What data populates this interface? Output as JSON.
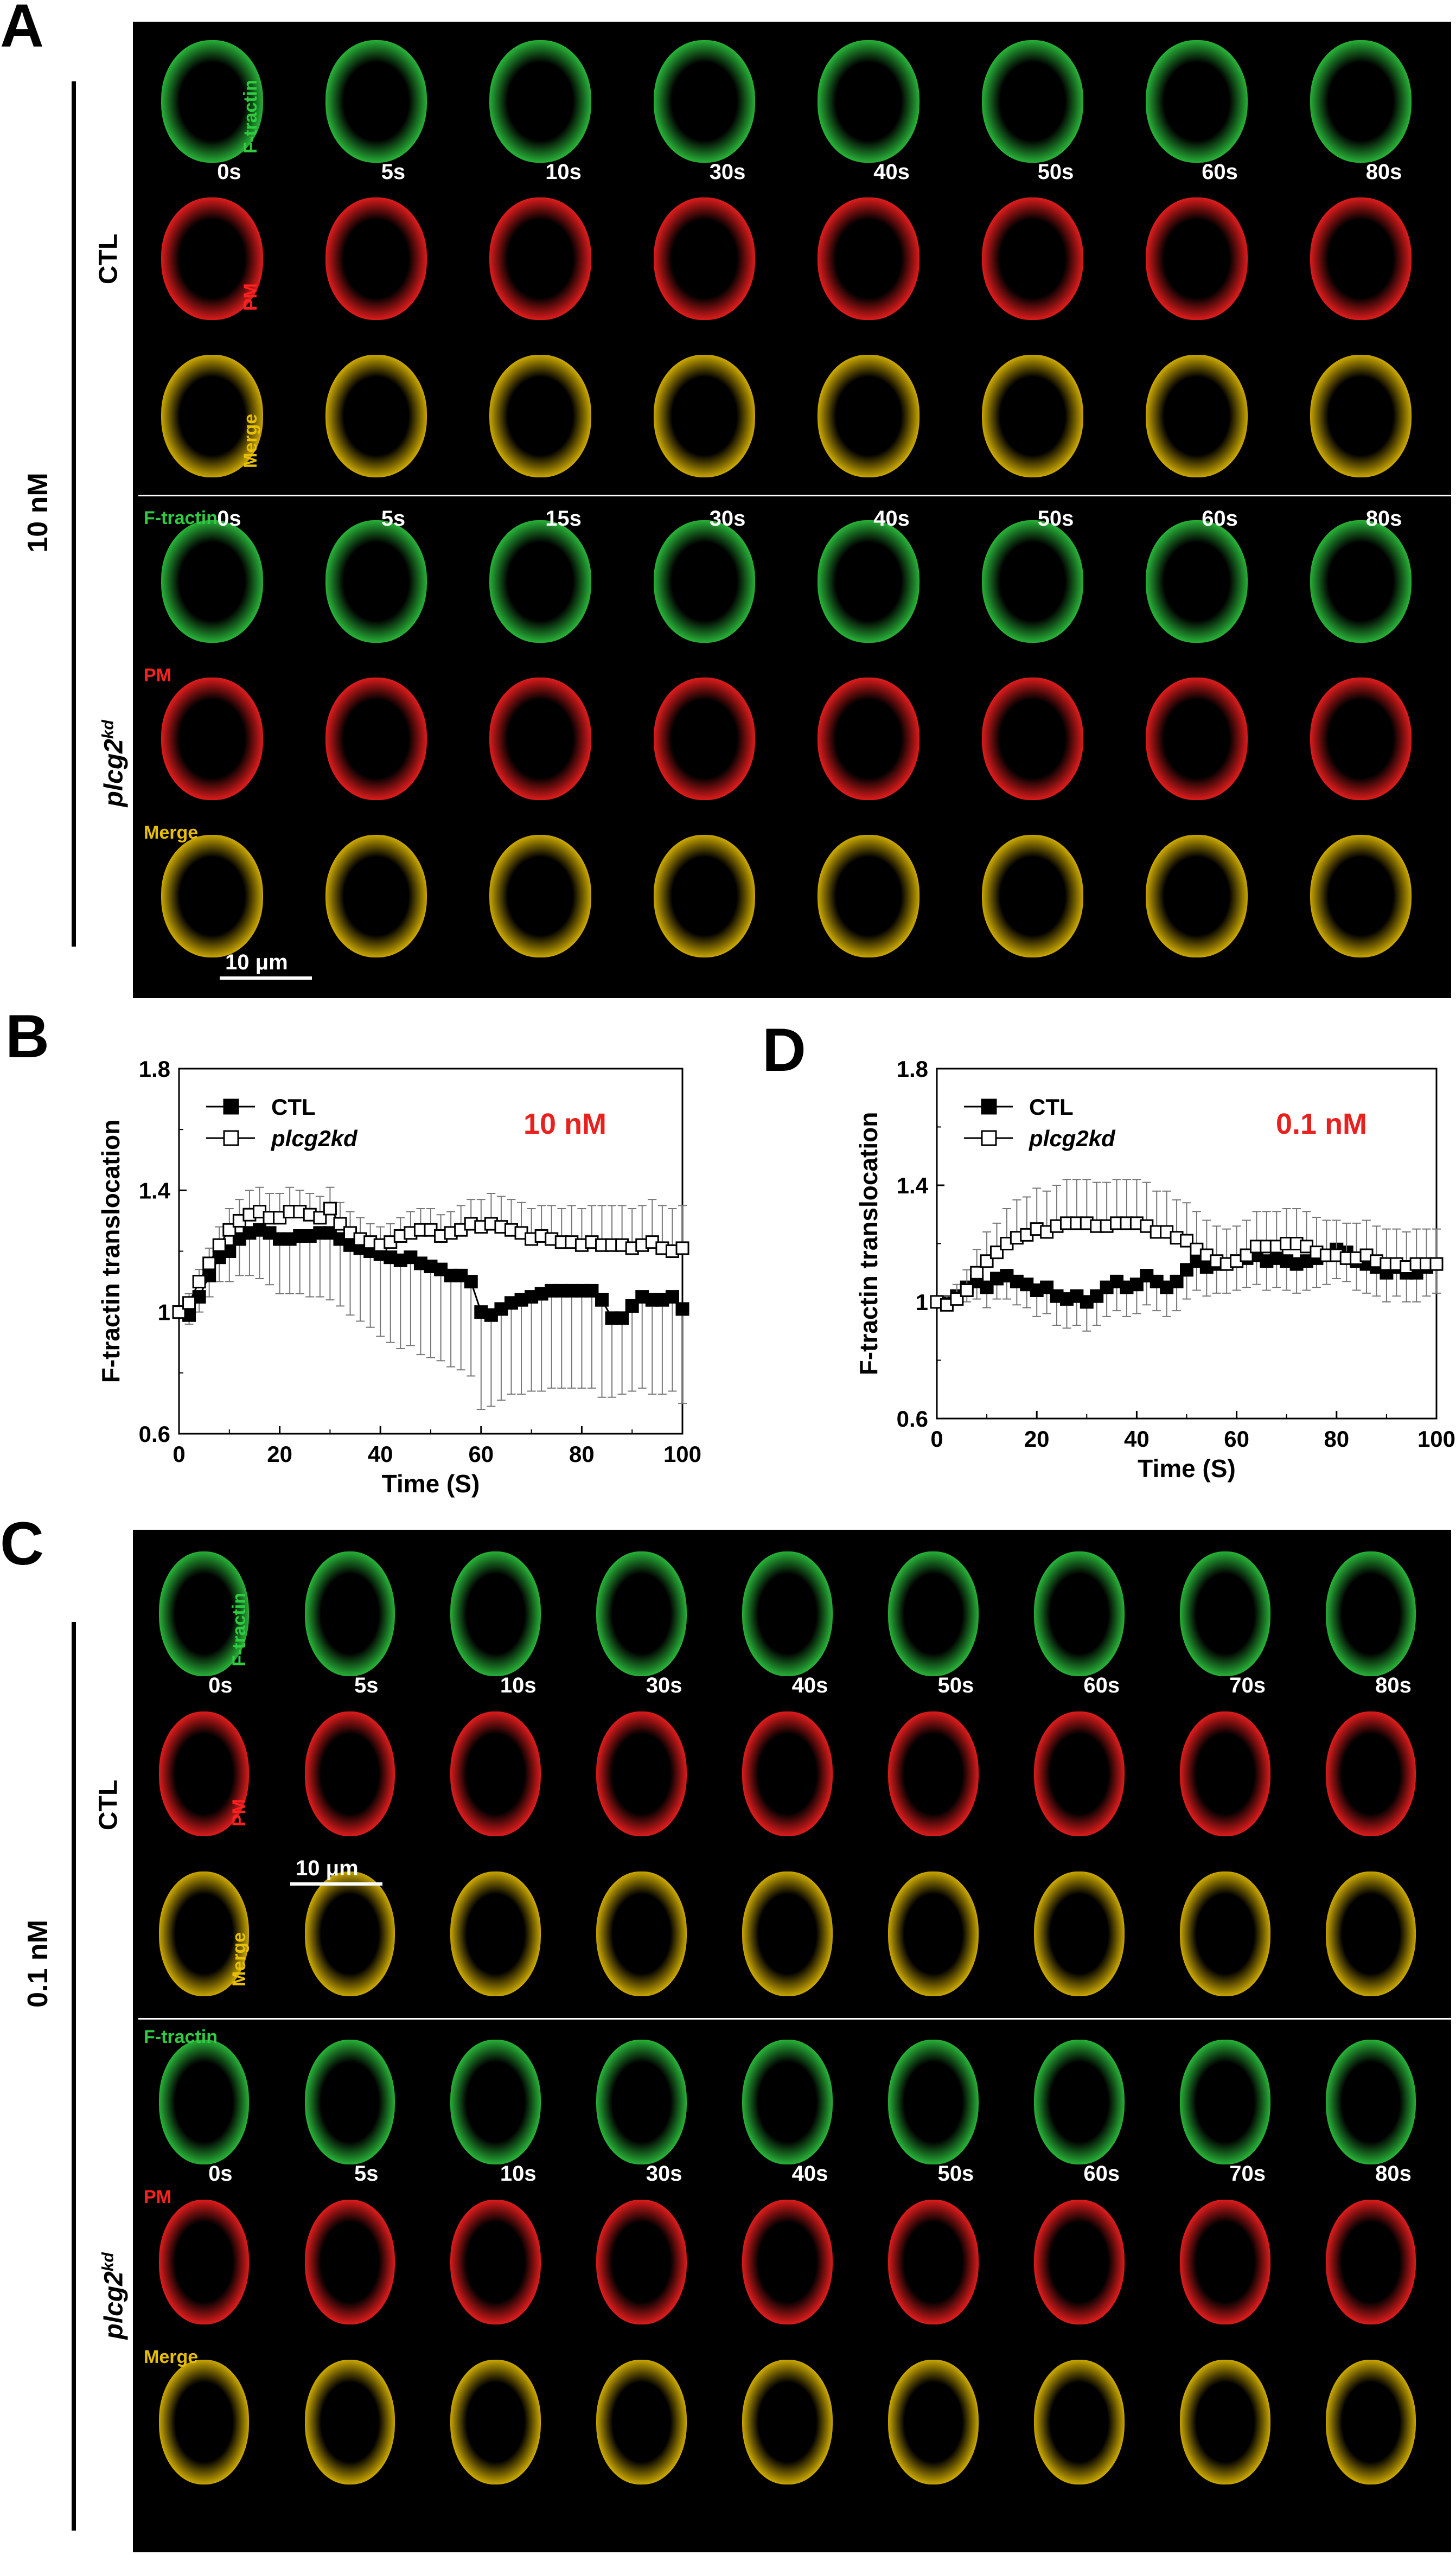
{
  "panels": {
    "A": {
      "letter": "A",
      "concentration": "10 nM",
      "ctl": {
        "group_label": "CTL",
        "rows": [
          "F-tractin",
          "PM",
          "Merge"
        ],
        "times": [
          "0s",
          "5s",
          "10s",
          "30s",
          "40s",
          "50s",
          "60s",
          "80s"
        ]
      },
      "kd": {
        "group_label": "plcg2",
        "group_label_sup": "kd",
        "rows": [
          "F-tractin",
          "PM",
          "Merge"
        ],
        "times": [
          "0s",
          "5s",
          "15s",
          "30s",
          "40s",
          "50s",
          "60s",
          "80s"
        ]
      },
      "scale_bar": "10 μm"
    },
    "B": {
      "letter": "B"
    },
    "C": {
      "letter": "C",
      "concentration": "0.1 nM",
      "ctl": {
        "group_label": "CTL",
        "rows": [
          "F-tractin",
          "PM",
          "Merge"
        ],
        "times": [
          "0s",
          "5s",
          "10s",
          "30s",
          "40s",
          "50s",
          "60s",
          "70s",
          "80s"
        ]
      },
      "kd": {
        "group_label": "plcg2",
        "group_label_sup": "kd",
        "rows": [
          "F-tractin",
          "PM",
          "Merge"
        ],
        "times": [
          "0s",
          "5s",
          "10s",
          "30s",
          "40s",
          "50s",
          "60s",
          "70s",
          "80s"
        ]
      },
      "scale_bar": "10 μm"
    },
    "D": {
      "letter": "D"
    }
  },
  "colors": {
    "green": "#2ecc40",
    "red": "#ff2020",
    "merge": "#e8c000",
    "annot_red": "#e8201e"
  },
  "chart_data": [
    {
      "type": "line",
      "panel": "B",
      "annotation": "10 nM",
      "ylabel": "F-tractin translocation",
      "xlabel": "Time (S)",
      "xlim": [
        0,
        100
      ],
      "ylim": [
        0.6,
        1.8
      ],
      "xticks": [
        "0",
        "20",
        "40",
        "60",
        "80",
        "100"
      ],
      "yticks": [
        "0.6",
        "1",
        "1.4",
        "1.8"
      ],
      "series": [
        {
          "name": "CTL",
          "marker": "filled-square",
          "x": [
            0,
            2,
            4,
            6,
            8,
            10,
            12,
            14,
            16,
            18,
            20,
            22,
            24,
            26,
            28,
            30,
            32,
            34,
            36,
            38,
            40,
            42,
            44,
            46,
            48,
            50,
            52,
            54,
            56,
            58,
            60,
            62,
            64,
            66,
            68,
            70,
            72,
            74,
            76,
            78,
            80,
            82,
            84,
            86,
            88,
            90,
            92,
            94,
            96,
            98,
            100
          ],
          "y": [
            1.0,
            0.99,
            1.05,
            1.12,
            1.18,
            1.2,
            1.24,
            1.26,
            1.27,
            1.26,
            1.24,
            1.24,
            1.25,
            1.25,
            1.26,
            1.26,
            1.24,
            1.22,
            1.21,
            1.2,
            1.19,
            1.18,
            1.17,
            1.18,
            1.16,
            1.15,
            1.14,
            1.12,
            1.12,
            1.1,
            1.0,
            0.99,
            1.01,
            1.03,
            1.04,
            1.05,
            1.06,
            1.07,
            1.07,
            1.07,
            1.07,
            1.07,
            1.04,
            0.98,
            0.98,
            1.02,
            1.05,
            1.04,
            1.04,
            1.05,
            1.01
          ],
          "err": [
            0.02,
            0.03,
            0.05,
            0.07,
            0.08,
            0.1,
            0.12,
            0.14,
            0.16,
            0.17,
            0.18,
            0.18,
            0.19,
            0.2,
            0.21,
            0.22,
            0.22,
            0.23,
            0.24,
            0.25,
            0.27,
            0.28,
            0.29,
            0.29,
            0.3,
            0.3,
            0.3,
            0.3,
            0.31,
            0.31,
            0.32,
            0.3,
            0.3,
            0.3,
            0.31,
            0.31,
            0.32,
            0.32,
            0.32,
            0.32,
            0.32,
            0.32,
            0.32,
            0.26,
            0.25,
            0.28,
            0.3,
            0.31,
            0.31,
            0.31,
            0.31
          ]
        },
        {
          "name": "plcg2kd",
          "marker": "open-square",
          "x": [
            0,
            2,
            4,
            6,
            8,
            10,
            12,
            14,
            16,
            18,
            20,
            22,
            24,
            26,
            28,
            30,
            32,
            34,
            36,
            38,
            40,
            42,
            44,
            46,
            48,
            50,
            52,
            54,
            56,
            58,
            60,
            62,
            64,
            66,
            68,
            70,
            72,
            74,
            76,
            78,
            80,
            82,
            84,
            86,
            88,
            90,
            92,
            94,
            96,
            98,
            100
          ],
          "y": [
            1.0,
            1.03,
            1.1,
            1.16,
            1.22,
            1.27,
            1.3,
            1.32,
            1.33,
            1.31,
            1.31,
            1.33,
            1.33,
            1.32,
            1.31,
            1.34,
            1.29,
            1.26,
            1.24,
            1.23,
            1.22,
            1.23,
            1.25,
            1.26,
            1.27,
            1.27,
            1.25,
            1.26,
            1.27,
            1.29,
            1.28,
            1.29,
            1.28,
            1.27,
            1.26,
            1.24,
            1.25,
            1.24,
            1.23,
            1.23,
            1.22,
            1.23,
            1.22,
            1.22,
            1.22,
            1.21,
            1.22,
            1.23,
            1.21,
            1.2,
            1.21
          ],
          "err": [
            0.01,
            0.03,
            0.04,
            0.05,
            0.06,
            0.07,
            0.07,
            0.08,
            0.08,
            0.08,
            0.08,
            0.08,
            0.07,
            0.07,
            0.07,
            0.07,
            0.07,
            0.07,
            0.07,
            0.06,
            0.06,
            0.06,
            0.06,
            0.07,
            0.07,
            0.07,
            0.07,
            0.07,
            0.08,
            0.08,
            0.09,
            0.1,
            0.1,
            0.1,
            0.1,
            0.1,
            0.1,
            0.11,
            0.11,
            0.12,
            0.12,
            0.12,
            0.13,
            0.13,
            0.13,
            0.13,
            0.13,
            0.14,
            0.14,
            0.14,
            0.14
          ]
        }
      ]
    },
    {
      "type": "line",
      "panel": "D",
      "annotation": "0.1 nM",
      "ylabel": "F-tractin translocation",
      "xlabel": "Time (S)",
      "xlim": [
        0,
        100
      ],
      "ylim": [
        0.6,
        1.8
      ],
      "xticks": [
        "0",
        "20",
        "40",
        "60",
        "80",
        "100"
      ],
      "yticks": [
        "0.6",
        "1",
        "1.4",
        "1.8"
      ],
      "series": [
        {
          "name": "CTL",
          "marker": "filled-square",
          "x": [
            0,
            2,
            4,
            6,
            8,
            10,
            12,
            14,
            16,
            18,
            20,
            22,
            24,
            26,
            28,
            30,
            32,
            34,
            36,
            38,
            40,
            42,
            44,
            46,
            48,
            50,
            52,
            54,
            56,
            58,
            60,
            62,
            64,
            66,
            68,
            70,
            72,
            74,
            76,
            78,
            80,
            82,
            84,
            86,
            88,
            90,
            92,
            94,
            96,
            98,
            100
          ],
          "y": [
            1.0,
            1.0,
            1.02,
            1.05,
            1.07,
            1.05,
            1.08,
            1.09,
            1.07,
            1.06,
            1.04,
            1.05,
            1.02,
            1.01,
            1.02,
            1.0,
            1.02,
            1.05,
            1.07,
            1.05,
            1.06,
            1.09,
            1.07,
            1.05,
            1.07,
            1.11,
            1.14,
            1.12,
            1.13,
            1.13,
            1.14,
            1.15,
            1.16,
            1.14,
            1.15,
            1.14,
            1.13,
            1.14,
            1.15,
            1.16,
            1.18,
            1.17,
            1.14,
            1.13,
            1.12,
            1.1,
            1.12,
            1.1,
            1.1,
            1.12,
            1.13
          ],
          "err": [
            0.01,
            0.02,
            0.03,
            0.05,
            0.06,
            0.07,
            0.07,
            0.08,
            0.08,
            0.08,
            0.09,
            0.09,
            0.1,
            0.1,
            0.1,
            0.1,
            0.1,
            0.1,
            0.1,
            0.1,
            0.1,
            0.1,
            0.1,
            0.1,
            0.1,
            0.1,
            0.1,
            0.1,
            0.1,
            0.1,
            0.1,
            0.1,
            0.1,
            0.1,
            0.1,
            0.1,
            0.1,
            0.1,
            0.1,
            0.1,
            0.1,
            0.1,
            0.1,
            0.1,
            0.1,
            0.1,
            0.1,
            0.1,
            0.1,
            0.1,
            0.1
          ]
        },
        {
          "name": "plcg2kd",
          "marker": "open-square",
          "x": [
            0,
            2,
            4,
            6,
            8,
            10,
            12,
            14,
            16,
            18,
            20,
            22,
            24,
            26,
            28,
            30,
            32,
            34,
            36,
            38,
            40,
            42,
            44,
            46,
            48,
            50,
            52,
            54,
            56,
            58,
            60,
            62,
            64,
            66,
            68,
            70,
            72,
            74,
            76,
            78,
            80,
            82,
            84,
            86,
            88,
            90,
            92,
            94,
            96,
            98,
            100
          ],
          "y": [
            1.0,
            0.99,
            1.01,
            1.04,
            1.1,
            1.14,
            1.17,
            1.2,
            1.22,
            1.23,
            1.25,
            1.24,
            1.26,
            1.27,
            1.27,
            1.27,
            1.26,
            1.26,
            1.27,
            1.27,
            1.27,
            1.26,
            1.24,
            1.24,
            1.22,
            1.21,
            1.18,
            1.16,
            1.14,
            1.13,
            1.14,
            1.16,
            1.19,
            1.19,
            1.19,
            1.2,
            1.2,
            1.19,
            1.17,
            1.16,
            1.16,
            1.15,
            1.15,
            1.16,
            1.14,
            1.13,
            1.13,
            1.12,
            1.13,
            1.13,
            1.13
          ],
          "err": [
            0.01,
            0.03,
            0.05,
            0.07,
            0.08,
            0.1,
            0.1,
            0.12,
            0.13,
            0.13,
            0.14,
            0.14,
            0.14,
            0.15,
            0.15,
            0.15,
            0.15,
            0.15,
            0.15,
            0.15,
            0.15,
            0.15,
            0.14,
            0.14,
            0.13,
            0.13,
            0.13,
            0.12,
            0.12,
            0.12,
            0.12,
            0.12,
            0.12,
            0.12,
            0.12,
            0.12,
            0.12,
            0.12,
            0.12,
            0.12,
            0.12,
            0.12,
            0.12,
            0.12,
            0.12,
            0.12,
            0.12,
            0.12,
            0.12,
            0.12,
            0.12
          ]
        }
      ]
    }
  ]
}
